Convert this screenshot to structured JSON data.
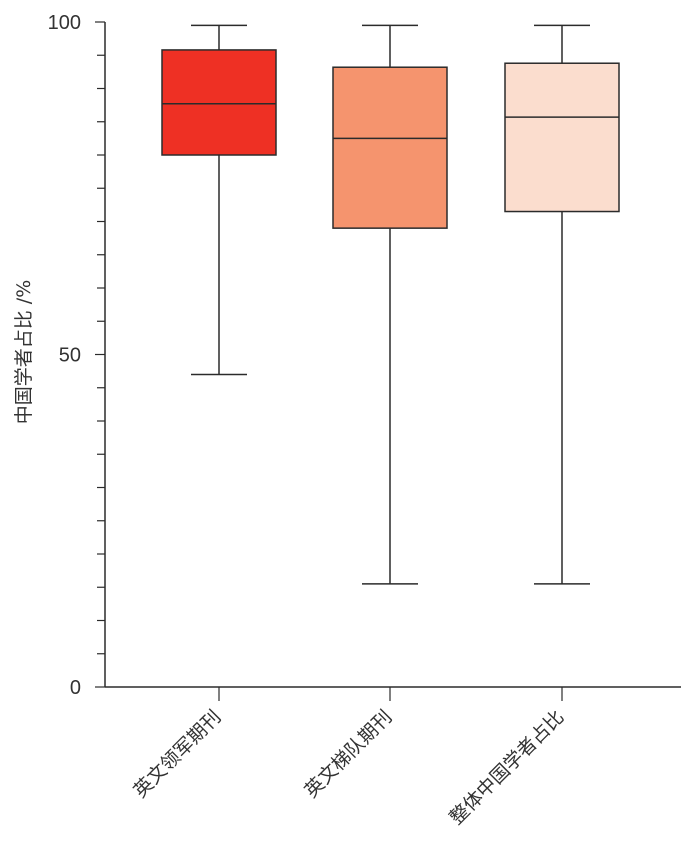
{
  "chart_data": {
    "type": "box",
    "ylabel": "中国学者占比 /%",
    "ylim": [
      0,
      100
    ],
    "yticks_labeled": [
      0,
      50,
      100
    ],
    "yticks_minor_step": 5,
    "categories": [
      "英文领军期刊",
      "英文梯队期刊",
      "整体中国学者占比"
    ],
    "boxes": [
      {
        "category": "英文领军期刊",
        "min": 47,
        "q1": 80,
        "median": 87.7,
        "q3": 95.8,
        "max": 99.5,
        "color": "#ee3024"
      },
      {
        "category": "英文梯队期刊",
        "min": 15.5,
        "q1": 69,
        "median": 82.5,
        "q3": 93.2,
        "max": 99.5,
        "color": "#f5946e"
      },
      {
        "category": "整体中国学者占比",
        "min": 15.5,
        "q1": 71.5,
        "median": 85.7,
        "q3": 93.8,
        "max": 99.5,
        "color": "#fbddce"
      }
    ],
    "grid": false,
    "legend": "none"
  }
}
